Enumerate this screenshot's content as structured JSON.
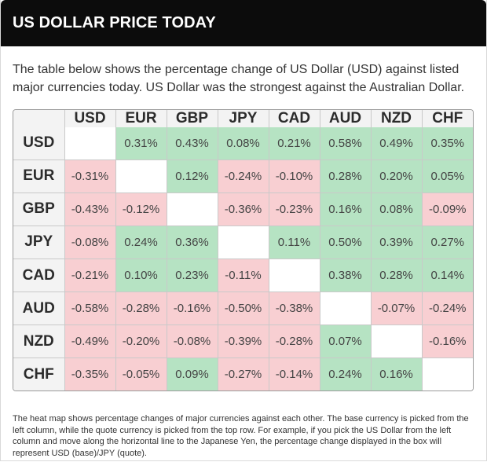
{
  "header": {
    "title": "US DOLLAR PRICE TODAY"
  },
  "intro": "The table below shows the percentage change of US Dollar (USD) against listed major currencies today. US Dollar was the strongest against the Australian Dollar.",
  "colors": {
    "positive": "#b6e3c3",
    "negative": "#f8cfd2",
    "header_bg": "#0c0c0c"
  },
  "table": {
    "columns": [
      "USD",
      "EUR",
      "GBP",
      "JPY",
      "CAD",
      "AUD",
      "NZD",
      "CHF"
    ],
    "rows": [
      {
        "label": "USD",
        "cells": [
          "",
          "0.31%",
          "0.43%",
          "0.08%",
          "0.21%",
          "0.58%",
          "0.49%",
          "0.35%"
        ]
      },
      {
        "label": "EUR",
        "cells": [
          "-0.31%",
          "",
          "0.12%",
          "-0.24%",
          "-0.10%",
          "0.28%",
          "0.20%",
          "0.05%"
        ]
      },
      {
        "label": "GBP",
        "cells": [
          "-0.43%",
          "-0.12%",
          "",
          "-0.36%",
          "-0.23%",
          "0.16%",
          "0.08%",
          "-0.09%"
        ]
      },
      {
        "label": "JPY",
        "cells": [
          "-0.08%",
          "0.24%",
          "0.36%",
          "",
          "0.11%",
          "0.50%",
          "0.39%",
          "0.27%"
        ]
      },
      {
        "label": "CAD",
        "cells": [
          "-0.21%",
          "0.10%",
          "0.23%",
          "-0.11%",
          "",
          "0.38%",
          "0.28%",
          "0.14%"
        ]
      },
      {
        "label": "AUD",
        "cells": [
          "-0.58%",
          "-0.28%",
          "-0.16%",
          "-0.50%",
          "-0.38%",
          "",
          "-0.07%",
          "-0.24%"
        ]
      },
      {
        "label": "NZD",
        "cells": [
          "-0.49%",
          "-0.20%",
          "-0.08%",
          "-0.39%",
          "-0.28%",
          "0.07%",
          "",
          "-0.16%"
        ]
      },
      {
        "label": "CHF",
        "cells": [
          "-0.35%",
          "-0.05%",
          "0.09%",
          "-0.27%",
          "-0.14%",
          "0.24%",
          "0.16%",
          ""
        ]
      }
    ]
  },
  "footnote": "The heat map shows percentage changes of major currencies against each other. The base currency is picked from the left column, while the quote currency is picked from the top row. For example, if you pick the US Dollar from the left column and move along the horizontal line to the Japanese Yen, the percentage change displayed in the box will represent USD (base)/JPY (quote)."
}
